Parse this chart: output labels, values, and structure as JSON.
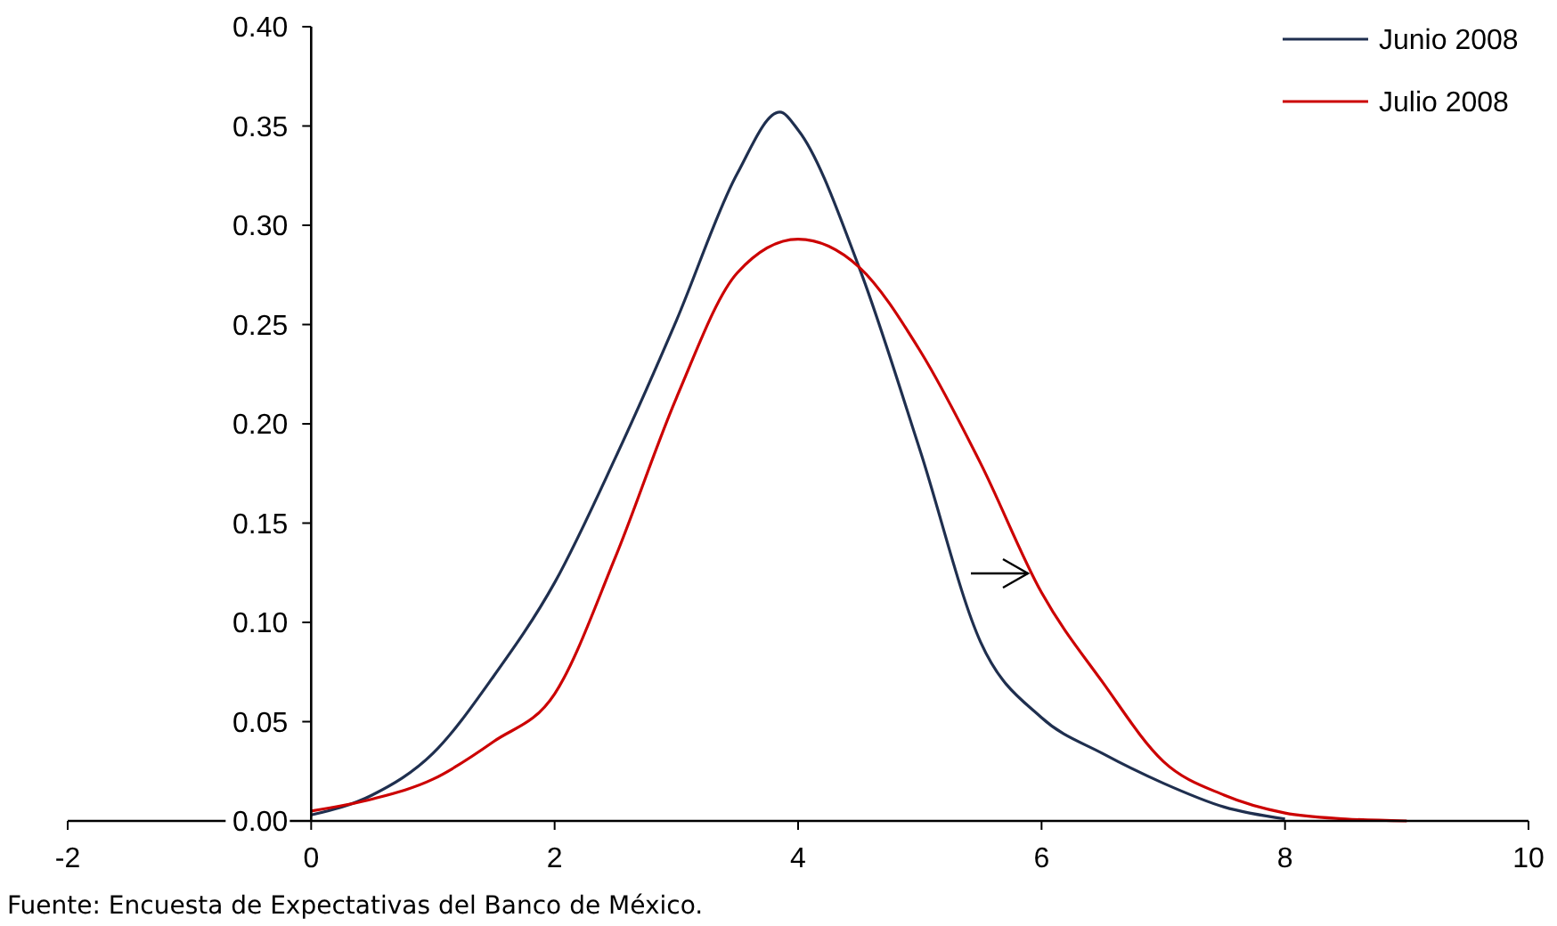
{
  "chart_data": {
    "type": "line",
    "series": [
      {
        "name": "Junio 2008",
        "color": "#1f2f4f",
        "x": [
          0,
          0.5,
          1,
          1.5,
          2,
          2.5,
          3,
          3.5,
          3.85,
          4,
          4.5,
          5,
          5.5,
          6,
          6.5,
          7,
          7.5,
          8
        ],
        "values": [
          0.003,
          0.013,
          0.034,
          0.073,
          0.12,
          0.183,
          0.252,
          0.326,
          0.357,
          0.348,
          0.279,
          0.187,
          0.09,
          0.052,
          0.034,
          0.019,
          0.007,
          0.001
        ]
      },
      {
        "name": "Julio 2008",
        "color": "#cc0000",
        "x": [
          0,
          0.5,
          1,
          1.5,
          2,
          2.5,
          3,
          3.5,
          4,
          4.5,
          5,
          5.5,
          6,
          6.5,
          7,
          7.5,
          8,
          8.5,
          9
        ],
        "values": [
          0.005,
          0.011,
          0.021,
          0.04,
          0.064,
          0.133,
          0.213,
          0.276,
          0.293,
          0.279,
          0.237,
          0.18,
          0.115,
          0.07,
          0.03,
          0.013,
          0.004,
          0.001,
          0
        ]
      }
    ],
    "xlim": [
      -2,
      10
    ],
    "xticks": [
      -2,
      0,
      2,
      4,
      6,
      8,
      10
    ],
    "ylim": [
      0,
      0.4
    ],
    "yticks": [
      {
        "value": 0,
        "label": "0.00"
      },
      {
        "value": 0.05,
        "label": "0.05"
      },
      {
        "value": 0.1,
        "label": "0.10"
      },
      {
        "value": 0.15,
        "label": "0.15"
      },
      {
        "value": 0.2,
        "label": "0.20"
      },
      {
        "value": 0.25,
        "label": "0.25"
      },
      {
        "value": 0.3,
        "label": "0.30"
      },
      {
        "value": 0.35,
        "label": "0.35"
      },
      {
        "value": 0.4,
        "label": "0.40"
      }
    ],
    "grid": false,
    "legend": "top right",
    "marker": "none",
    "line_style": "solid",
    "annotations": [
      "Fuente: Encuesta de Expectativas del Banco de México."
    ]
  }
}
